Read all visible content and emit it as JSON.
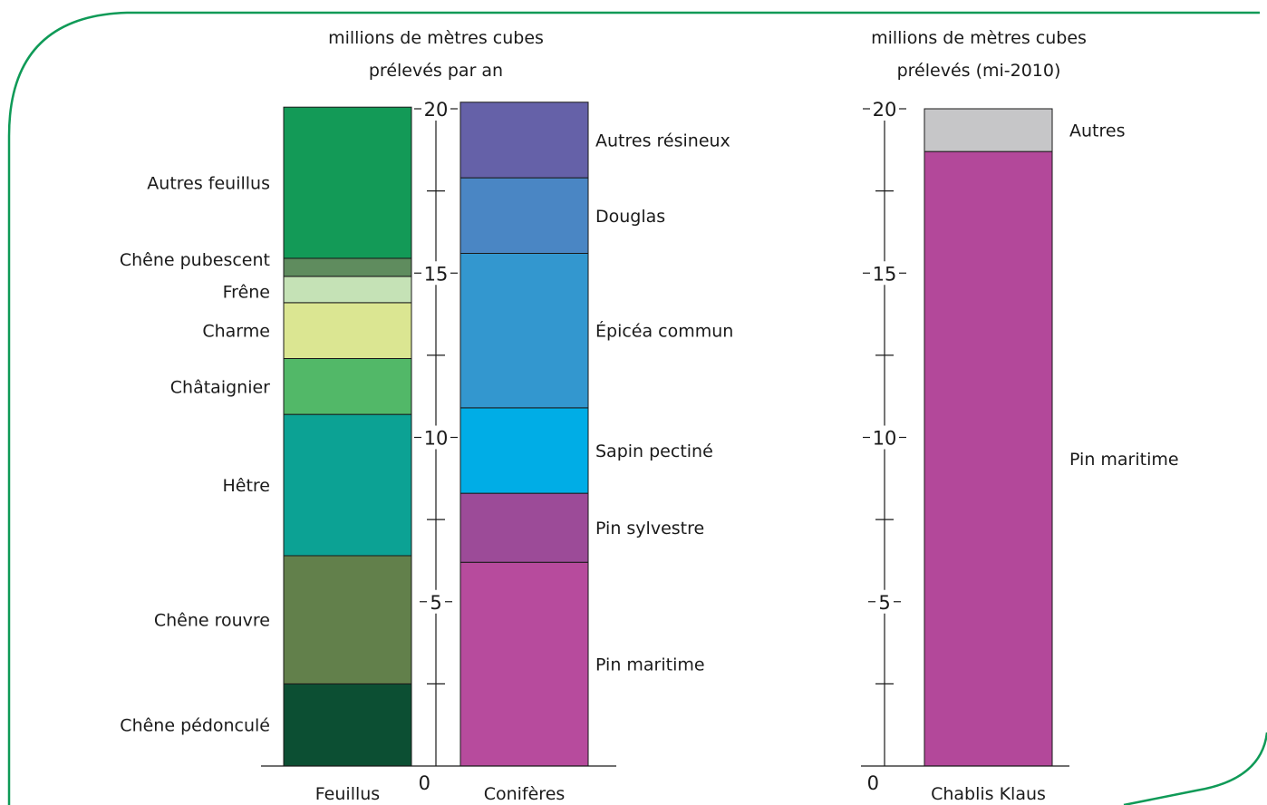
{
  "chart_data": [
    {
      "type": "bar",
      "stacked": true,
      "title_line1": "millions de mètres cubes",
      "title_line2": "prélevés par an",
      "ylim": [
        0,
        20
      ],
      "yticks": [
        0,
        5,
        10,
        15,
        20
      ],
      "grid": false,
      "bars": [
        {
          "name": "Feuillus",
          "segments": [
            {
              "label": "Chêne pédonculé",
              "value": 2.5,
              "color": "#0c4f33"
            },
            {
              "label": "Chêne rouvre",
              "value": 3.9,
              "color": "#62804b"
            },
            {
              "label": "Hêtre",
              "value": 4.3,
              "color": "#0ca294"
            },
            {
              "label": "Châtaignier",
              "value": 1.7,
              "color": "#52b868"
            },
            {
              "label": "Charme",
              "value": 1.7,
              "color": "#dbe692"
            },
            {
              "label": "Frêne",
              "value": 0.8,
              "color": "#c5e2b6"
            },
            {
              "label": "Chêne pubescent",
              "value": 0.55,
              "color": "#5f8c5e"
            },
            {
              "label": "Autres feuillus",
              "value": 4.6,
              "color": "#139a57"
            }
          ]
        },
        {
          "name": "Conifères",
          "segments": [
            {
              "label": "Pin maritime",
              "value": 6.2,
              "color": "#b74b9d"
            },
            {
              "label": "Pin sylvestre",
              "value": 2.1,
              "color": "#9c4b98"
            },
            {
              "label": "Sapin pectiné",
              "value": 2.6,
              "color": "#00ade6"
            },
            {
              "label": "Épicéa commun",
              "value": 4.7,
              "color": "#3397cf"
            },
            {
              "label": "Douglas",
              "value": 2.3,
              "color": "#4a86c4"
            },
            {
              "label": "Autres résineux",
              "value": 2.3,
              "color": "#6561a8"
            }
          ]
        }
      ]
    },
    {
      "type": "bar",
      "stacked": true,
      "title_line1": "millions de mètres cubes",
      "title_line2": "prélevés (mi-2010)",
      "ylim": [
        0,
        20
      ],
      "yticks": [
        0,
        5,
        10,
        15,
        20
      ],
      "grid": false,
      "bars": [
        {
          "name": "Chablis Klaus",
          "segments": [
            {
              "label": "Pin maritime",
              "value": 18.7,
              "color": "#b3489a"
            },
            {
              "label": "Autres",
              "value": 1.3,
              "color": "#c6c6c8"
            }
          ]
        }
      ]
    }
  ],
  "colors": {
    "frame": "#0f9a57",
    "text": "#1a1a1a",
    "axis": "#1a1a1a"
  }
}
